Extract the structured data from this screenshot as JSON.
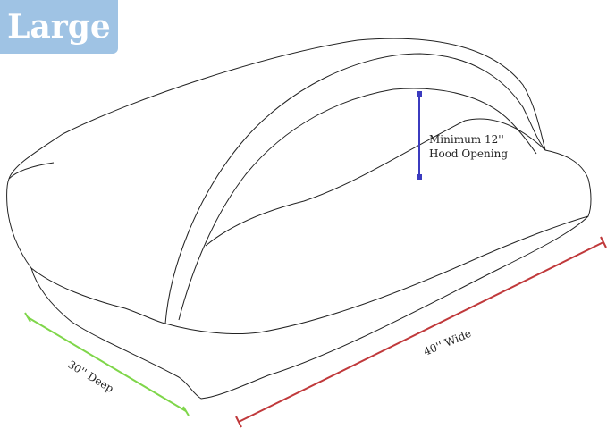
{
  "badge": {
    "label": "Large",
    "color": "#9fc3e4"
  },
  "dimensions": {
    "height": {
      "line1": "Minimum 12''",
      "line2": "Hood Opening",
      "color": "#3b3bbf"
    },
    "depth": {
      "label": "30'' Deep",
      "color": "#7fd64a"
    },
    "width": {
      "label": "40'' Wide",
      "color": "#c0393b"
    }
  }
}
